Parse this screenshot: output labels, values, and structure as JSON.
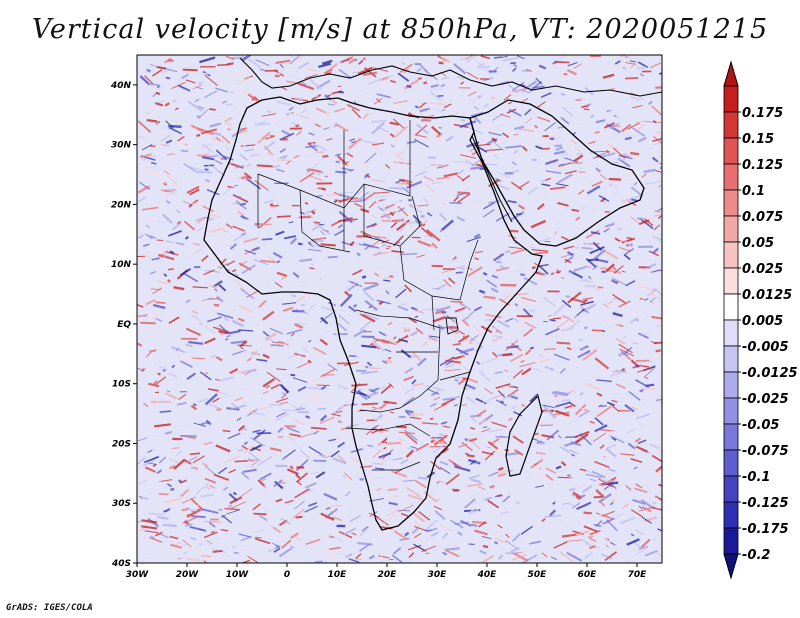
{
  "title": "Vertical velocity [m/s] at 850hPa, VT: 2020051215",
  "credit": "GrADS: IGES/COLA",
  "map": {
    "region": "Africa",
    "lon_range": [
      -30,
      75
    ],
    "lat_range": [
      -40,
      45
    ],
    "lat_labels": [
      "40N",
      "30N",
      "20N",
      "10N",
      "EQ",
      "10S",
      "20S",
      "30S",
      "40S"
    ],
    "lat_values": [
      40,
      30,
      20,
      10,
      0,
      -10,
      -20,
      -30,
      -40
    ],
    "lon_labels": [
      "30W",
      "20W",
      "10W",
      "0",
      "10E",
      "20E",
      "30E",
      "40E",
      "50E",
      "60E",
      "70E"
    ],
    "lon_values": [
      -30,
      -20,
      -10,
      0,
      10,
      20,
      30,
      40,
      50,
      60,
      70
    ]
  },
  "legend": {
    "labels": [
      "0.175",
      "0.15",
      "0.125",
      "0.1",
      "0.075",
      "0.05",
      "0.025",
      "0.0125",
      "0.005",
      "-0.005",
      "-0.0125",
      "-0.025",
      "-0.05",
      "-0.075",
      "-0.1",
      "-0.125",
      "-0.175",
      "-0.2"
    ],
    "colors": [
      "#c41e1e",
      "#d43636",
      "#e05454",
      "#e87070",
      "#ee8c8c",
      "#f3a8a8",
      "#f7c4c4",
      "#fbdede",
      "#ffffff",
      "#dedef8",
      "#c6c6f2",
      "#acacec",
      "#9292e4",
      "#7878da",
      "#5e5ed0",
      "#4444c2",
      "#2e2eb2",
      "#1a1a98"
    ],
    "top_arrow_color": "#b01414",
    "bottom_arrow_color": "#10107c"
  },
  "colors": {
    "frame": "#000000",
    "coast": "#000000",
    "neg_base": "#7a7ae6",
    "pos_base": "#e05a5a"
  }
}
